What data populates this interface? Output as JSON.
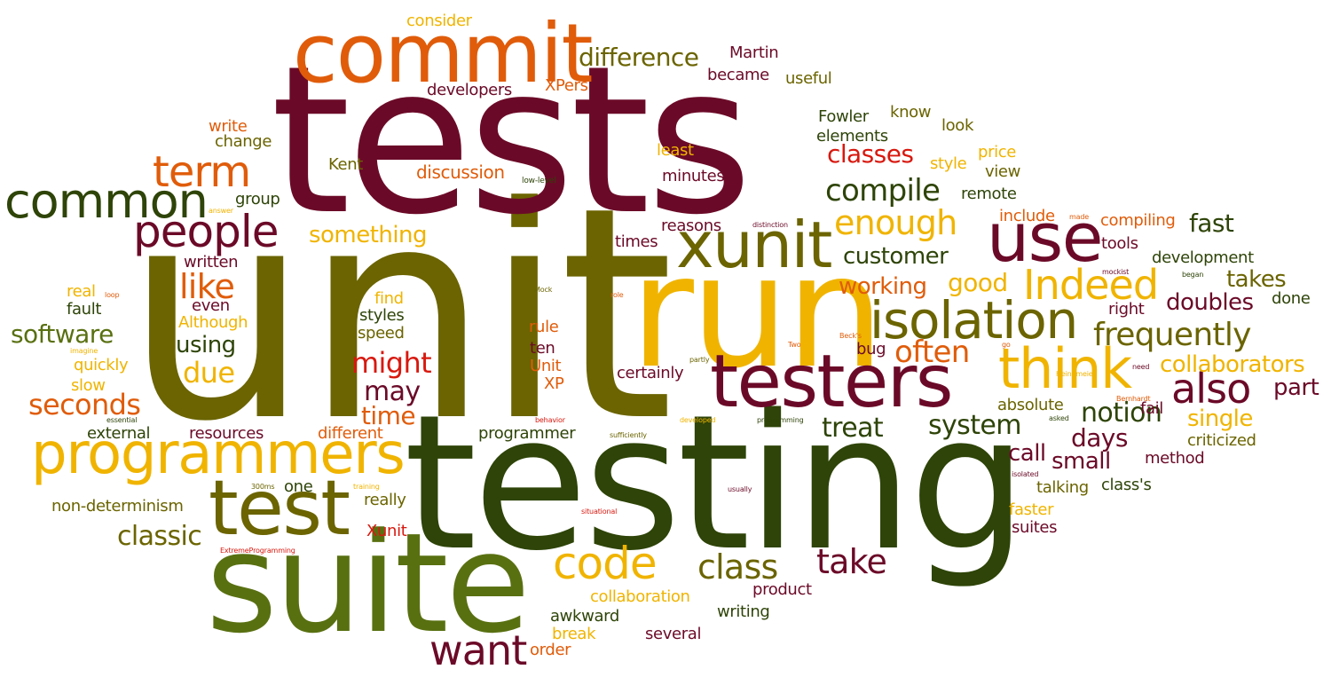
{
  "colors": {
    "maroon": "#6b0a28",
    "olive": "#6b6400",
    "orange": "#e05c0a",
    "gold": "#f0b400",
    "darkgreen": "#2e4408",
    "green": "#597011",
    "red": "#d8180e"
  },
  "words": [
    "unit",
    "tests",
    "testing",
    "run",
    "suite",
    "commit",
    "test",
    "programmers",
    "testers",
    "xunit",
    "use",
    "isolation",
    "think",
    "people",
    "common",
    "term",
    "code",
    "also",
    "Indeed",
    "enough",
    "compile",
    "classic",
    "want",
    "take",
    "class",
    "frequently",
    "often",
    "customer",
    "working",
    "good",
    "seconds",
    "software",
    "using",
    "due",
    "like",
    "might",
    "may",
    "time",
    "something",
    "difference",
    "classes",
    "notion",
    "treat",
    "system",
    "days",
    "collaborators",
    "single",
    "part",
    "doubles",
    "takes",
    "fast",
    "small",
    "call",
    "absolute",
    "consider",
    "Martin",
    "became",
    "useful",
    "developers",
    "XPers",
    "write",
    "change",
    "Kent",
    "discussion",
    "least",
    "minutes",
    "Fowler",
    "know",
    "look",
    "elements",
    "price",
    "style",
    "view",
    "remote",
    "group",
    "reasons",
    "times",
    "include",
    "compiling",
    "tools",
    "development",
    "right",
    "done",
    "written",
    "even",
    "real",
    "fault",
    "Although",
    "find",
    "styles",
    "speed",
    "rule",
    "ten",
    "Unit",
    "XP",
    "certainly",
    "bug",
    "quickly",
    "slow",
    "fail",
    "method",
    "criticized",
    "external",
    "resources",
    "different",
    "programmer",
    "one",
    "really",
    "non-determinism",
    "Xunit",
    "collaboration",
    "product",
    "awkward",
    "writing",
    "break",
    "order",
    "several",
    "faster",
    "suites",
    "talking",
    "class's",
    "low-level",
    "answer",
    "distinction",
    "made",
    "mockist",
    "began",
    "loop",
    "Mock",
    "role",
    "imagine",
    "Two",
    "Beck's",
    "go",
    "partly",
    "need",
    "essential",
    "behavior",
    "developed",
    "programming",
    "Bernhardt",
    "asked",
    "sufficiently",
    "300ms",
    "training",
    "usually",
    "isolated",
    "situational",
    "ExtremeProgramming",
    "Heinemeier"
  ]
}
